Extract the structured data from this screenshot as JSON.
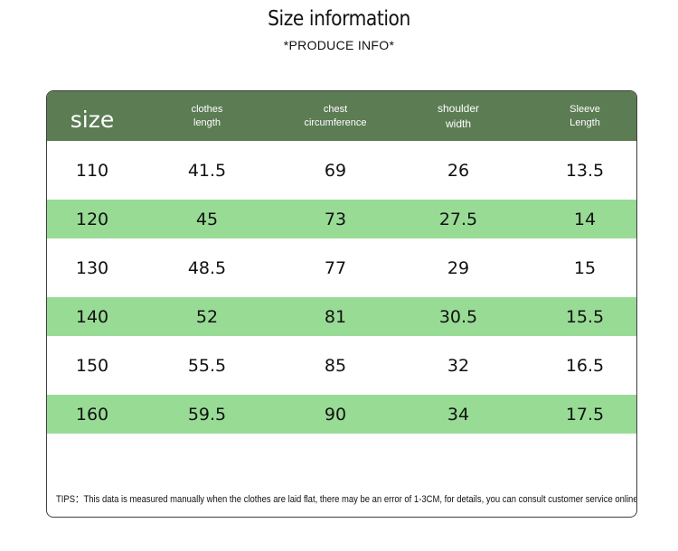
{
  "title": "Size information",
  "subtitle": "*PRODUCE INFO*",
  "table": {
    "headers": [
      {
        "line1": "size",
        "line2": ""
      },
      {
        "line1": "clothes",
        "line2": "length"
      },
      {
        "line1": "chest",
        "line2": "circumference"
      },
      {
        "line1": "shoulder",
        "line2": "width"
      },
      {
        "line1": "Sleeve",
        "line2": "Length"
      }
    ],
    "rows": [
      [
        "110",
        "41.5",
        "69",
        "26",
        "13.5"
      ],
      [
        "120",
        "45",
        "73",
        "27.5",
        "14"
      ],
      [
        "130",
        "48.5",
        "77",
        "29",
        "15"
      ],
      [
        "140",
        "52",
        "81",
        "30.5",
        "15.5"
      ],
      [
        "150",
        "55.5",
        "85",
        "32",
        "16.5"
      ],
      [
        "160",
        "59.5",
        "90",
        "34",
        "17.5"
      ]
    ]
  },
  "tips": "TIPS：This data is measured manually when the clothes are laid flat, there may be an error of 1-3CM, for details, you can consult customer service online",
  "colors": {
    "header": "#5c7c54",
    "stripe": "#98db95"
  }
}
